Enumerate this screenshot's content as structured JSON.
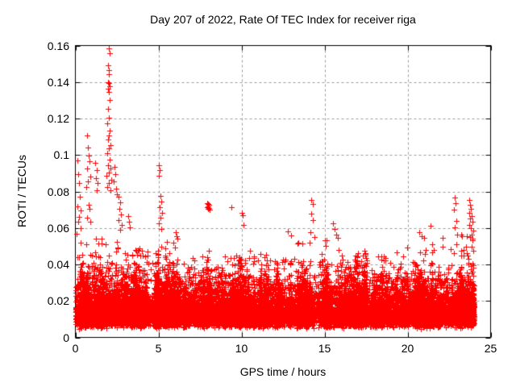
{
  "page": {
    "background": "#ffffff",
    "text_color": "#000000"
  },
  "chart_data": {
    "type": "scatter",
    "title": "Day 207 of 2022, Rate Of TEC Index for receiver riga",
    "xlabel": "GPS time / hours",
    "ylabel": "ROTI / TECUs",
    "xlim": [
      0,
      25
    ],
    "ylim": [
      0,
      0.16
    ],
    "xtick_values": [
      0,
      5,
      10,
      15,
      20,
      25
    ],
    "xtick_labels": [
      "0",
      "5",
      "10",
      "15",
      "20",
      "25"
    ],
    "ytick_values": [
      0,
      0.02,
      0.04,
      0.06,
      0.08,
      0.1,
      0.12,
      0.14,
      0.16
    ],
    "ytick_labels": [
      "0",
      "0.02",
      "0.04",
      "0.06",
      "0.08",
      "0.1",
      "0.12",
      "0.14",
      "0.16"
    ],
    "grid": true,
    "grid_style": "dashed",
    "grid_color": "#9c9c9c",
    "axis_color": "#000000",
    "legend": "none",
    "marker": {
      "style": "plus",
      "color": "#ff0000",
      "size": 7
    },
    "x_data_range": [
      0,
      24
    ],
    "outliers": [
      [
        0.1,
        0.097
      ],
      [
        0.15,
        0.0895
      ],
      [
        0.2,
        0.0845
      ],
      [
        0.25,
        0.077
      ],
      [
        0.1,
        0.072
      ],
      [
        0.3,
        0.0695
      ],
      [
        0.2,
        0.066
      ],
      [
        0.15,
        0.0635
      ],
      [
        0.3,
        0.06
      ],
      [
        0.05,
        0.057
      ],
      [
        0.7,
        0.1105
      ],
      [
        0.75,
        0.104
      ],
      [
        0.8,
        0.0995
      ],
      [
        0.85,
        0.0965
      ],
      [
        0.7,
        0.0925
      ],
      [
        0.9,
        0.088
      ],
      [
        0.75,
        0.0855
      ],
      [
        0.65,
        0.0825
      ],
      [
        0.8,
        0.0725
      ],
      [
        0.85,
        0.0705
      ],
      [
        0.7,
        0.0655
      ],
      [
        0.9,
        0.0635
      ],
      [
        1.2,
        0.0955
      ],
      [
        1.3,
        0.0915
      ],
      [
        1.25,
        0.0875
      ],
      [
        1.35,
        0.0845
      ],
      [
        1.3,
        0.0805
      ],
      [
        2.0,
        0.1585
      ],
      [
        2.05,
        0.156
      ],
      [
        1.95,
        0.149
      ],
      [
        2.0,
        0.1465
      ],
      [
        2.0,
        0.1445
      ],
      [
        1.95,
        0.14
      ],
      [
        2.0,
        0.1395
      ],
      [
        2.05,
        0.1375
      ],
      [
        1.95,
        0.1365
      ],
      [
        2.0,
        0.1345
      ],
      [
        2.05,
        0.13
      ],
      [
        1.95,
        0.1255
      ],
      [
        2.0,
        0.1205
      ],
      [
        1.9,
        0.1175
      ],
      [
        2.05,
        0.1135
      ],
      [
        2.0,
        0.1105
      ],
      [
        1.95,
        0.1085
      ],
      [
        2.1,
        0.1055
      ],
      [
        2.0,
        0.1035
      ],
      [
        1.9,
        0.101
      ],
      [
        2.05,
        0.0975
      ],
      [
        1.95,
        0.0945
      ],
      [
        2.1,
        0.0925
      ],
      [
        2.0,
        0.0905
      ],
      [
        1.85,
        0.0885
      ],
      [
        2.15,
        0.0865
      ],
      [
        2.0,
        0.0845
      ],
      [
        1.9,
        0.0825
      ],
      [
        2.1,
        0.0805
      ],
      [
        2.35,
        0.0935
      ],
      [
        2.4,
        0.0895
      ],
      [
        2.3,
        0.0855
      ],
      [
        2.45,
        0.0815
      ],
      [
        2.5,
        0.0785
      ],
      [
        2.6,
        0.077
      ],
      [
        2.7,
        0.074
      ],
      [
        2.65,
        0.0705
      ],
      [
        2.75,
        0.0675
      ],
      [
        2.6,
        0.0645
      ],
      [
        2.8,
        0.0615
      ],
      [
        2.7,
        0.059
      ],
      [
        3.2,
        0.0665
      ],
      [
        3.25,
        0.0635
      ],
      [
        3.3,
        0.0605
      ],
      [
        5.0,
        0.0945
      ],
      [
        5.05,
        0.0915
      ],
      [
        5.0,
        0.0885
      ],
      [
        5.1,
        0.0775
      ],
      [
        5.15,
        0.0745
      ],
      [
        5.05,
        0.0715
      ],
      [
        5.2,
        0.0685
      ],
      [
        5.1,
        0.0655
      ],
      [
        5.0,
        0.0625
      ],
      [
        5.15,
        0.0595
      ],
      [
        6.05,
        0.0575
      ],
      [
        6.1,
        0.0555
      ],
      [
        6.15,
        0.054
      ],
      [
        7.95,
        0.0735
      ],
      [
        8.0,
        0.073
      ],
      [
        8.05,
        0.0725
      ],
      [
        8.0,
        0.072
      ],
      [
        7.95,
        0.0715
      ],
      [
        8.05,
        0.071
      ],
      [
        8.0,
        0.0705
      ],
      [
        8.1,
        0.07
      ],
      [
        9.4,
        0.0712
      ],
      [
        10.0,
        0.0685
      ],
      [
        10.05,
        0.0668
      ],
      [
        10.1,
        0.0615
      ],
      [
        12.8,
        0.0583
      ],
      [
        13.0,
        0.056
      ],
      [
        14.2,
        0.0752
      ],
      [
        14.3,
        0.073
      ],
      [
        14.2,
        0.0677
      ],
      [
        14.3,
        0.0645
      ],
      [
        14.15,
        0.0575
      ],
      [
        14.4,
        0.055
      ],
      [
        15.5,
        0.0625
      ],
      [
        15.6,
        0.0595
      ],
      [
        15.7,
        0.0565
      ],
      [
        15.8,
        0.0545
      ],
      [
        20.7,
        0.0575
      ],
      [
        20.85,
        0.0555
      ],
      [
        21.0,
        0.0545
      ],
      [
        21.4,
        0.061
      ],
      [
        22.1,
        0.0544
      ],
      [
        22.85,
        0.0765
      ],
      [
        22.9,
        0.0735
      ],
      [
        22.8,
        0.07
      ],
      [
        22.95,
        0.064
      ],
      [
        22.85,
        0.0605
      ],
      [
        23.0,
        0.0565
      ],
      [
        23.7,
        0.0755
      ],
      [
        23.75,
        0.0725
      ],
      [
        23.8,
        0.0705
      ],
      [
        23.7,
        0.0685
      ],
      [
        23.85,
        0.0665
      ],
      [
        23.75,
        0.065
      ],
      [
        23.9,
        0.0635
      ],
      [
        23.7,
        0.0615
      ],
      [
        23.8,
        0.06
      ],
      [
        23.95,
        0.0585
      ],
      [
        23.85,
        0.0565
      ],
      [
        23.75,
        0.055
      ],
      [
        23.9,
        0.054
      ]
    ],
    "dense_band": {
      "description": "Continuous noise band of ROTI values across 0-24 h; solid core approx 0.010-0.030 TECU, lower fringe to approx 0.004, upper speckle to hourly fringe max",
      "points_estimate": 16000,
      "core_range": [
        0.01,
        0.03
      ],
      "floor": 0.004,
      "hourly_fringe_max": [
        0.052,
        0.056,
        0.062,
        0.05,
        0.048,
        0.054,
        0.047,
        0.045,
        0.048,
        0.045,
        0.05,
        0.046,
        0.044,
        0.052,
        0.052,
        0.056,
        0.046,
        0.048,
        0.046,
        0.05,
        0.047,
        0.055,
        0.052,
        0.058
      ],
      "seed": 20220207
    }
  }
}
